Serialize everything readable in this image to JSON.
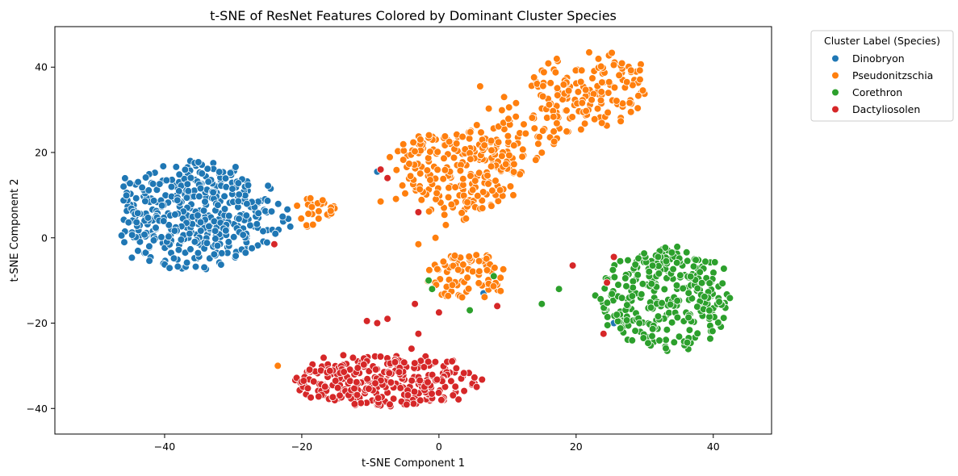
{
  "chart_data": {
    "type": "scatter",
    "title": "t-SNE of ResNet Features Colored by Dominant Cluster Species",
    "xlabel": "t-SNE Component 1",
    "ylabel": "t-SNE Component 2",
    "xlim": [
      -56,
      48.5
    ],
    "ylim": [
      -46,
      49.5
    ],
    "xticks": [
      -40,
      -20,
      0,
      20,
      40
    ],
    "yticks": [
      -40,
      -20,
      0,
      20,
      40
    ],
    "grid": false,
    "legend": {
      "title": "Cluster Label (Species)",
      "placement": "outside-top-right"
    },
    "series": [
      {
        "name": "Dinobryon",
        "color": "#1f77b4",
        "cluster_center": [
          -35,
          5
        ],
        "cluster_spread": [
          7,
          7
        ],
        "approx_count": 450,
        "extra_points": [
          [
            -9,
            15.5
          ],
          [
            -24,
            -1.5
          ],
          [
            6.5,
            -13
          ],
          [
            25.5,
            -20
          ]
        ]
      },
      {
        "name": "Pseudonitzschia",
        "color": "#ff7f0e",
        "clusters": [
          {
            "center": [
              2,
              15
            ],
            "spread": [
              5.5,
              6
            ],
            "approx_count": 220
          },
          {
            "center": [
              22,
              35
            ],
            "spread": [
              5,
              5
            ],
            "approx_count": 140
          },
          {
            "center": [
              12,
              25
            ],
            "spread": [
              4,
              5
            ],
            "approx_count": 60
          },
          {
            "center": [
              4,
              -9
            ],
            "spread": [
              3.5,
              3.5
            ],
            "approx_count": 80
          },
          {
            "center": [
              -18,
              6
            ],
            "spread": [
              1.8,
              2
            ],
            "approx_count": 25
          }
        ],
        "extra_points": [
          [
            -23.5,
            -30
          ],
          [
            6,
            35.5
          ],
          [
            1,
            3
          ],
          [
            -0.5,
            0
          ],
          [
            -3,
            -1.5
          ],
          [
            -8.5,
            8.5
          ],
          [
            9.5,
            33
          ]
        ]
      },
      {
        "name": "Corethron",
        "color": "#2ca02c",
        "cluster_center": [
          33,
          -14
        ],
        "cluster_spread": [
          5.5,
          7
        ],
        "approx_count": 300,
        "extra_points": [
          [
            15,
            -15.5
          ],
          [
            17.5,
            -12
          ],
          [
            4.5,
            -17
          ],
          [
            8,
            -9
          ],
          [
            -1.5,
            -10
          ],
          [
            -1,
            -12
          ]
        ]
      },
      {
        "name": "Dactyliosolen",
        "color": "#d62728",
        "cluster_center": [
          -8,
          -33.5
        ],
        "cluster_spread": [
          8,
          3.5
        ],
        "approx_count": 300,
        "extra_points": [
          [
            -3,
            6
          ],
          [
            -9,
            -20
          ],
          [
            -10.5,
            -19.5
          ],
          [
            -7.5,
            -19
          ],
          [
            -3,
            -22.5
          ],
          [
            -4,
            -26
          ],
          [
            -8.5,
            16
          ],
          [
            -7.5,
            14
          ],
          [
            19.5,
            -6.5
          ],
          [
            25.5,
            -4.5
          ],
          [
            24.5,
            -10.5
          ],
          [
            24,
            -22.5
          ],
          [
            -24,
            -1.5
          ],
          [
            -3.5,
            -15.5
          ],
          [
            0,
            -17.5
          ],
          [
            8.5,
            -16
          ]
        ]
      }
    ]
  }
}
